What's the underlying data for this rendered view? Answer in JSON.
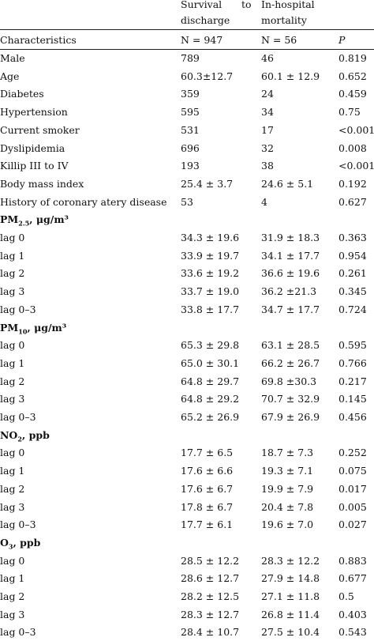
{
  "header": {
    "col1_line1_a": "Survival",
    "col1_line1_b": "to",
    "col1_line2": "discharge",
    "col2_line1": "In-hospital",
    "col2_line2": "mortality",
    "characteristics": "Characteristics",
    "n1": "N = 947",
    "n2": "N = 56",
    "p": "P"
  },
  "rows": [
    {
      "type": "data",
      "label": "Male",
      "v1": "789",
      "v2": "46",
      "p": "0.819"
    },
    {
      "type": "data",
      "label": "Age",
      "v1": "60.3±12.7",
      "v2": "60.1 ± 12.9",
      "p": "0.652"
    },
    {
      "type": "data",
      "label": "Diabetes",
      "v1": "359",
      "v2": "24",
      "p": "0.459"
    },
    {
      "type": "data",
      "label": "Hypertension",
      "v1": "595",
      "v2": "34",
      "p": "0.75"
    },
    {
      "type": "data",
      "label": "Current smoker",
      "v1": "531",
      "v2": "17",
      "p": "<0.001"
    },
    {
      "type": "data",
      "label": "Dyslipidemia",
      "v1": "696",
      "v2": "32",
      "p": "0.008"
    },
    {
      "type": "data",
      "label": "Killip III to IV",
      "v1": "193",
      "v2": "38",
      "p": "<0.001"
    },
    {
      "type": "data",
      "label": "Body mass index",
      "v1": "25.4 ± 3.7",
      "v2": "24.6 ± 5.1",
      "p": "0.192"
    },
    {
      "type": "data",
      "label": "History of coronary atery disease",
      "v1": "53",
      "v2": "4",
      "p": "0.627"
    },
    {
      "type": "section",
      "label": "PM",
      "sub": "2.5",
      "rest": ", μg/m³"
    },
    {
      "type": "data",
      "label": "lag 0",
      "v1": "34.3 ± 19.6",
      "v2": "31.9 ± 18.3",
      "p": "0.363"
    },
    {
      "type": "data",
      "label": "lag 1",
      "v1": "33.9 ± 19.7",
      "v2": "34.1 ± 17.7",
      "p": "0.954"
    },
    {
      "type": "data",
      "label": "lag 2",
      "v1": "33.6 ± 19.2",
      "v2": "36.6 ± 19.6",
      "p": "0.261"
    },
    {
      "type": "data",
      "label": "lag 3",
      "v1": "33.7 ± 19.0",
      "v2": "36.2 ±21.3",
      "p": "0.345"
    },
    {
      "type": "data",
      "label": "lag 0–3",
      "v1": "33.8 ± 17.7",
      "v2": "34.7 ± 17.7",
      "p": "0.724"
    },
    {
      "type": "section",
      "label": "PM",
      "sub": "10",
      "rest": ", μg/m³"
    },
    {
      "type": "data",
      "label": "lag 0",
      "v1": "65.3 ± 29.8",
      "v2": "63.1 ± 28.5",
      "p": "0.595"
    },
    {
      "type": "data",
      "label": "lag 1",
      "v1": "65.0 ± 30.1",
      "v2": "66.2 ± 26.7",
      "p": "0.766"
    },
    {
      "type": "data",
      "label": "lag 2",
      "v1": "64.8 ± 29.7",
      "v2": "69.8 ±30.3",
      "p": "0.217"
    },
    {
      "type": "data",
      "label": "lag 3",
      "v1": "64.8 ± 29.2",
      "v2": "70.7 ± 32.9",
      "p": "0.145"
    },
    {
      "type": "data",
      "label": "lag 0–3",
      "v1": "65.2 ± 26.9",
      "v2": "67.9 ± 26.9",
      "p": "0.456"
    },
    {
      "type": "section",
      "label": "NO",
      "sub": "2",
      "rest": ", ppb"
    },
    {
      "type": "data",
      "label": "lag 0",
      "v1": "17.7 ± 6.5",
      "v2": "18.7 ± 7.3",
      "p": "0.252"
    },
    {
      "type": "data",
      "label": "lag 1",
      "v1": "17.6 ± 6.6",
      "v2": "19.3 ± 7.1",
      "p": "0.075"
    },
    {
      "type": "data",
      "label": "lag 2",
      "v1": "17.6 ± 6.7",
      "v2": "19.9 ± 7.9",
      "p": "0.017"
    },
    {
      "type": "data",
      "label": "lag 3",
      "v1": "17.8 ± 6.7",
      "v2": "20.4 ± 7.8",
      "p": "0.005"
    },
    {
      "type": "data",
      "label": "lag 0–3",
      "v1": "17.7 ± 6.1",
      "v2": "19.6 ± 7.0",
      "p": "0.027"
    },
    {
      "type": "section",
      "label": "O",
      "sub": "3",
      "rest": ", ppb"
    },
    {
      "type": "data",
      "label": "lag 0",
      "v1": "28.5 ± 12.2",
      "v2": "28.3 ± 12.2",
      "p": "0.883"
    },
    {
      "type": "data",
      "label": "lag 1",
      "v1": "28.6 ± 12.7",
      "v2": "27.9 ± 14.8",
      "p": "0.677"
    },
    {
      "type": "data",
      "label": "lag 2",
      "v1": "28.2 ± 12.5",
      "v2": "27.1 ± 11.8",
      "p": "0.5"
    },
    {
      "type": "data",
      "label": "lag 3",
      "v1": "28.3 ± 12.7",
      "v2": "26.8 ± 11.4",
      "p": "0.403"
    },
    {
      "type": "data",
      "label": "lag 0–3",
      "v1": "28.4 ± 10.7",
      "v2": "27.5 ± 10.4",
      "p": "0.543"
    }
  ]
}
